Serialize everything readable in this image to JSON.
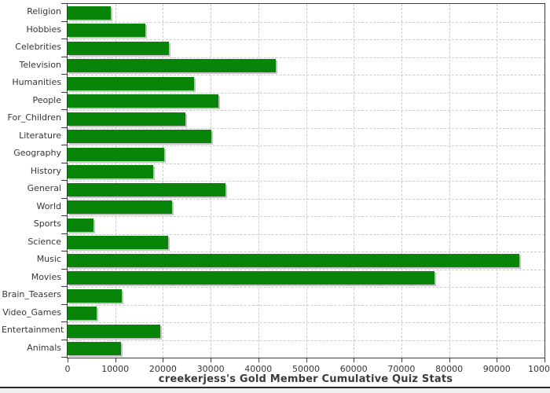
{
  "chart_data": {
    "type": "bar",
    "orientation": "horizontal",
    "title": "creekerjess's Gold Member Cumulative Quiz Stats",
    "title_position": "bottom",
    "categories": [
      "Religion",
      "Hobbies",
      "Celebrities",
      "Television",
      "Humanities",
      "People",
      "For_Children",
      "Literature",
      "Geography",
      "History",
      "General",
      "World",
      "Sports",
      "Science",
      "Music",
      "Movies",
      "Brain_Teasers",
      "Video_Games",
      "Entertainment",
      "Animals"
    ],
    "values": [
      9000,
      16300,
      21300,
      43600,
      26500,
      31700,
      24700,
      30100,
      20300,
      17900,
      33100,
      21900,
      5400,
      21100,
      94700,
      76900,
      11300,
      6100,
      19400,
      11200
    ],
    "xlabel": "",
    "ylabel": "",
    "xlim": [
      0,
      100000
    ],
    "x_ticks": [
      0,
      10000,
      20000,
      30000,
      40000,
      50000,
      60000,
      70000,
      80000,
      90000,
      100000
    ],
    "grid": "dashed",
    "legend": "none",
    "bar_color": "#088408",
    "bar_shadow_color": "#c3c3c3",
    "grid_color": "#cbcbcb",
    "axis_color": "#3c3c3c",
    "text_color": "#363636",
    "background_color": "#ffffff"
  }
}
